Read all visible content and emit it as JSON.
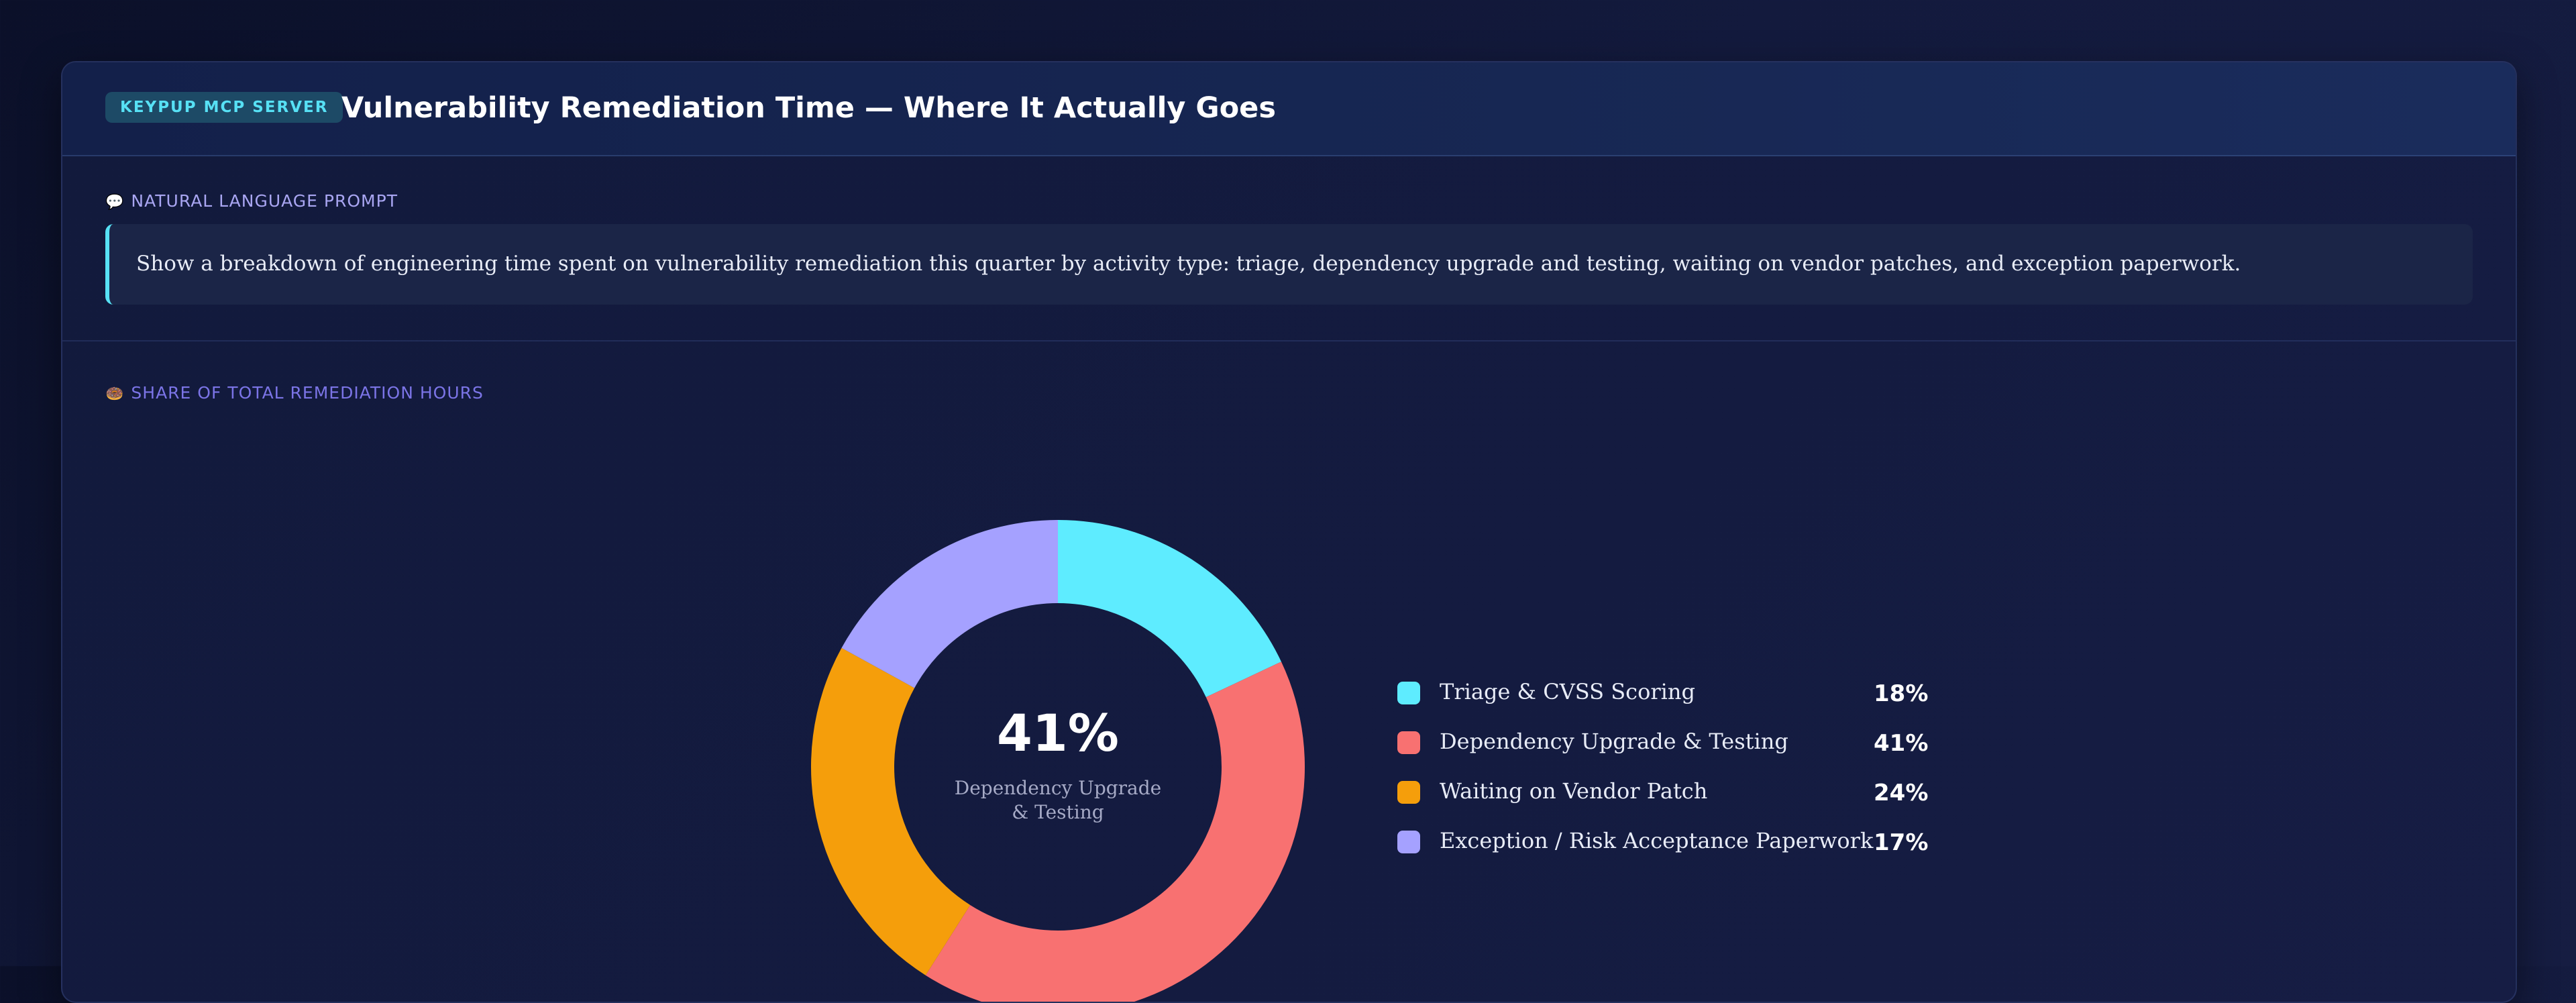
{
  "header": {
    "badge": "KEYPUP MCP SERVER",
    "title": "Vulnerability Remediation Time — Where It Actually Goes"
  },
  "prompt": {
    "label": "NATURAL LANGUAGE PROMPT",
    "icon": "speech-bubble-icon",
    "text": "Show a breakdown of engineering time spent on vulnerability remediation this quarter by activity type: triage, dependency upgrade and testing, waiting on vendor patches, and exception paperwork."
  },
  "chart_section": {
    "label": "SHARE OF TOTAL REMEDIATION HOURS",
    "icon": "donut-icon"
  },
  "chart_data": {
    "type": "pie",
    "style": "donut",
    "categories": [
      "Triage & CVSS Scoring",
      "Dependency Upgrade & Testing",
      "Waiting on Vendor Patch",
      "Exception / Risk Acceptance Paperwork"
    ],
    "values": [
      18,
      41,
      24,
      17
    ],
    "value_labels": [
      "18%",
      "41%",
      "24%",
      "17%"
    ],
    "colors": [
      "#5eecff",
      "#f87171",
      "#f59e0b",
      "#a5a1ff"
    ],
    "center_value": "41%",
    "center_label": "Dependency Upgrade & Testing",
    "legend_position": "right"
  }
}
